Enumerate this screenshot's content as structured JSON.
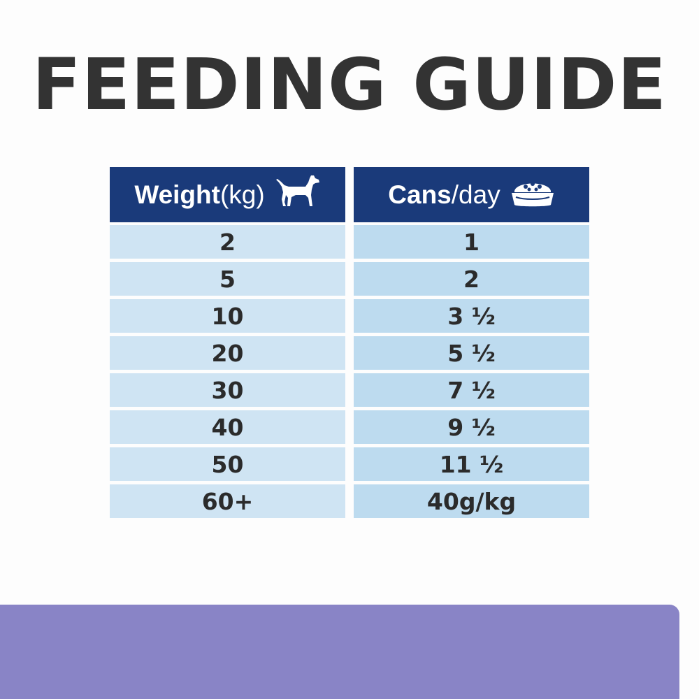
{
  "title": "FEEDING GUIDE",
  "table": {
    "header": {
      "weight_bold": "Weight",
      "weight_unit": " (kg)",
      "cans_bold": "Cans",
      "cans_rest": "/day",
      "weight_icon": "dog-icon",
      "cans_icon": "food-bowl-icon"
    },
    "rows": [
      {
        "weight": "2",
        "cans": "1"
      },
      {
        "weight": "5",
        "cans": "2"
      },
      {
        "weight": "10",
        "cans": "3 ½"
      },
      {
        "weight": "20",
        "cans": "5 ½"
      },
      {
        "weight": "30",
        "cans": "7 ½"
      },
      {
        "weight": "40",
        "cans": "9 ½"
      },
      {
        "weight": "50",
        "cans": "11 ½"
      },
      {
        "weight": "60+",
        "cans": "40g/kg"
      }
    ]
  },
  "colors": {
    "header_bg": "#1a3a7a",
    "row_left": "#cfe4f3",
    "row_right": "#bddbef",
    "title": "#333333",
    "bottom_bar": "#8984c6"
  }
}
